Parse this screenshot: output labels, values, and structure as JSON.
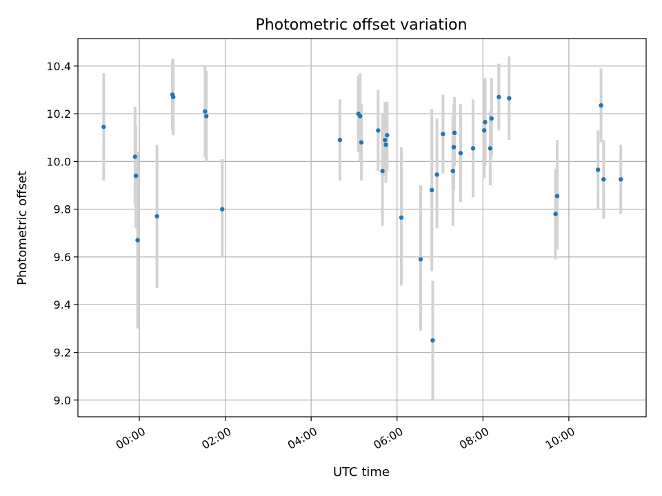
{
  "chart_data": {
    "type": "scatter",
    "title": "Photometric offset variation",
    "xlabel": "UTC time",
    "ylabel": "Photometric offset",
    "x_unit": "hours UTC",
    "xlim": [
      -1.43,
      11.8
    ],
    "ylim": [
      8.93,
      10.515
    ],
    "grid": true,
    "colors": {
      "points": "#1f77b4",
      "errorbars": "#d3d3d3",
      "grid": "#b0b0b0"
    },
    "xticks": [
      {
        "value": 0,
        "label": "00:00"
      },
      {
        "value": 2,
        "label": "02:00"
      },
      {
        "value": 4,
        "label": "04:00"
      },
      {
        "value": 6,
        "label": "06:00"
      },
      {
        "value": 8,
        "label": "08:00"
      },
      {
        "value": 10,
        "label": "10:00"
      }
    ],
    "yticks": [
      {
        "value": 9.0,
        "label": "9.0"
      },
      {
        "value": 9.2,
        "label": "9.2"
      },
      {
        "value": 9.4,
        "label": "9.4"
      },
      {
        "value": 9.6,
        "label": "9.6"
      },
      {
        "value": 9.8,
        "label": "9.8"
      },
      {
        "value": 10.0,
        "label": "10.0"
      },
      {
        "value": 10.2,
        "label": "10.2"
      },
      {
        "value": 10.4,
        "label": "10.4"
      }
    ],
    "points": [
      {
        "x": -0.83,
        "y": 10.145,
        "ylow": 9.92,
        "yhigh": 10.37
      },
      {
        "x": -0.1,
        "y": 10.02,
        "ylow": 9.82,
        "yhigh": 10.23
      },
      {
        "x": -0.08,
        "y": 9.94,
        "ylow": 9.72,
        "yhigh": 10.15
      },
      {
        "x": -0.04,
        "y": 9.67,
        "ylow": 9.3,
        "yhigh": 10.04
      },
      {
        "x": 0.41,
        "y": 9.77,
        "ylow": 9.47,
        "yhigh": 10.07
      },
      {
        "x": 0.77,
        "y": 10.28,
        "ylow": 10.13,
        "yhigh": 10.43
      },
      {
        "x": 0.79,
        "y": 10.27,
        "ylow": 10.11,
        "yhigh": 10.43
      },
      {
        "x": 1.53,
        "y": 10.21,
        "ylow": 10.02,
        "yhigh": 10.4
      },
      {
        "x": 1.56,
        "y": 10.19,
        "ylow": 10.0,
        "yhigh": 10.38
      },
      {
        "x": 1.93,
        "y": 9.8,
        "ylow": 9.6,
        "yhigh": 10.01
      },
      {
        "x": 4.67,
        "y": 10.09,
        "ylow": 9.92,
        "yhigh": 10.26
      },
      {
        "x": 5.1,
        "y": 10.2,
        "ylow": 10.04,
        "yhigh": 10.36
      },
      {
        "x": 5.14,
        "y": 10.19,
        "ylow": 10.0,
        "yhigh": 10.37
      },
      {
        "x": 5.17,
        "y": 10.08,
        "ylow": 9.92,
        "yhigh": 10.24
      },
      {
        "x": 5.56,
        "y": 10.13,
        "ylow": 9.96,
        "yhigh": 10.3
      },
      {
        "x": 5.66,
        "y": 9.96,
        "ylow": 9.73,
        "yhigh": 10.2
      },
      {
        "x": 5.72,
        "y": 10.09,
        "ylow": 9.94,
        "yhigh": 10.25
      },
      {
        "x": 5.74,
        "y": 10.07,
        "ylow": 9.91,
        "yhigh": 10.24
      },
      {
        "x": 5.77,
        "y": 10.11,
        "ylow": 9.96,
        "yhigh": 10.25
      },
      {
        "x": 6.1,
        "y": 9.765,
        "ylow": 9.48,
        "yhigh": 10.06
      },
      {
        "x": 6.55,
        "y": 9.59,
        "ylow": 9.29,
        "yhigh": 9.9
      },
      {
        "x": 6.81,
        "y": 9.88,
        "ylow": 9.54,
        "yhigh": 10.22
      },
      {
        "x": 6.83,
        "y": 9.25,
        "ylow": 9.0,
        "yhigh": 9.5
      },
      {
        "x": 6.93,
        "y": 9.945,
        "ylow": 9.72,
        "yhigh": 10.18
      },
      {
        "x": 7.07,
        "y": 10.115,
        "ylow": 9.95,
        "yhigh": 10.28
      },
      {
        "x": 7.3,
        "y": 9.96,
        "ylow": 9.73,
        "yhigh": 10.19
      },
      {
        "x": 7.32,
        "y": 10.06,
        "ylow": 9.88,
        "yhigh": 10.24
      },
      {
        "x": 7.34,
        "y": 10.12,
        "ylow": 9.98,
        "yhigh": 10.27
      },
      {
        "x": 7.48,
        "y": 10.035,
        "ylow": 9.83,
        "yhigh": 10.24
      },
      {
        "x": 7.77,
        "y": 10.055,
        "ylow": 9.85,
        "yhigh": 10.26
      },
      {
        "x": 8.03,
        "y": 10.13,
        "ylow": 9.93,
        "yhigh": 10.34
      },
      {
        "x": 8.05,
        "y": 10.165,
        "ylow": 9.98,
        "yhigh": 10.35
      },
      {
        "x": 8.17,
        "y": 10.055,
        "ylow": 9.9,
        "yhigh": 10.21
      },
      {
        "x": 8.2,
        "y": 10.18,
        "ylow": 10.02,
        "yhigh": 10.35
      },
      {
        "x": 8.37,
        "y": 10.27,
        "ylow": 10.13,
        "yhigh": 10.41
      },
      {
        "x": 8.61,
        "y": 10.265,
        "ylow": 10.09,
        "yhigh": 10.44
      },
      {
        "x": 9.69,
        "y": 9.78,
        "ylow": 9.59,
        "yhigh": 9.97
      },
      {
        "x": 9.73,
        "y": 9.855,
        "ylow": 9.63,
        "yhigh": 10.09
      },
      {
        "x": 10.68,
        "y": 9.965,
        "ylow": 9.8,
        "yhigh": 10.13
      },
      {
        "x": 10.75,
        "y": 10.235,
        "ylow": 10.08,
        "yhigh": 10.39
      },
      {
        "x": 10.81,
        "y": 9.925,
        "ylow": 9.76,
        "yhigh": 10.09
      },
      {
        "x": 11.21,
        "y": 9.925,
        "ylow": 9.78,
        "yhigh": 10.07
      }
    ]
  }
}
